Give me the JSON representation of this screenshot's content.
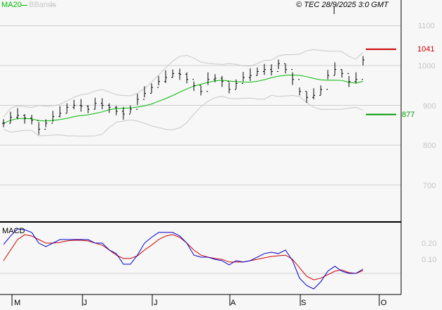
{
  "legend": {
    "ma_label": "MA20",
    "bb_label": "BBands",
    "ma_color": "#00bb00",
    "bb_color": "#c8c8c8"
  },
  "copyright": "© TEC 28/9/2025 3:0 GMT",
  "macd_title": "MACD",
  "levels": {
    "resistance": "1041",
    "support": "877",
    "resistance_value": 1041,
    "support_value": 877,
    "resistance_color": "#cc0000",
    "support_color": "#009900"
  },
  "chart_data": {
    "type": "line",
    "title": "",
    "price_axis": {
      "ticks": [
        1100,
        1000,
        900,
        800,
        700
      ],
      "tick_labels": [
        "1100",
        "1000",
        "900",
        "800",
        "700"
      ],
      "ylim": [
        670,
        1130
      ]
    },
    "macd_axis": {
      "ticks": [
        0.2,
        0.1
      ],
      "tick_labels": [
        "0.20",
        "0.10"
      ],
      "ylim": [
        -0.1,
        0.32
      ]
    },
    "x_labels": [
      "M",
      "J",
      "J",
      "A",
      "S",
      "O"
    ],
    "closes": [
      855,
      870,
      875,
      868,
      862,
      840,
      855,
      872,
      880,
      895,
      900,
      898,
      890,
      905,
      900,
      895,
      885,
      878,
      890,
      915,
      930,
      945,
      960,
      970,
      980,
      978,
      965,
      950,
      935,
      965,
      968,
      960,
      940,
      955,
      970,
      975,
      985,
      990,
      985,
      1005,
      990,
      965,
      935,
      920,
      925,
      940,
      975,
      990,
      980,
      960,
      965,
      1014
    ],
    "macd": [
      0.196,
      0.246,
      0.288,
      0.283,
      0.267,
      0.204,
      0.183,
      0.204,
      0.225,
      0.225,
      0.225,
      0.225,
      0.225,
      0.204,
      0.204,
      0.163,
      0.142,
      0.079,
      0.079,
      0.133,
      0.204,
      0.238,
      0.267,
      0.267,
      0.267,
      0.246,
      0.204,
      0.133,
      0.121,
      0.121,
      0.108,
      0.1,
      0.075,
      0.1,
      0.092,
      0.1,
      0.121,
      0.142,
      0.15,
      0.142,
      0.163,
      0.1,
      -0.004,
      -0.046,
      -0.067,
      -0.025,
      0.038,
      0.067,
      0.038,
      0.025,
      0.025,
      0.05
    ],
    "signal": [
      0.1,
      0.163,
      0.225,
      0.254,
      0.246,
      0.225,
      0.204,
      0.204,
      0.208,
      0.217,
      0.221,
      0.221,
      0.217,
      0.204,
      0.192,
      0.163,
      0.133,
      0.113,
      0.113,
      0.129,
      0.163,
      0.192,
      0.225,
      0.246,
      0.254,
      0.238,
      0.204,
      0.163,
      0.133,
      0.121,
      0.113,
      0.108,
      0.092,
      0.092,
      0.092,
      0.1,
      0.108,
      0.117,
      0.125,
      0.129,
      0.133,
      0.108,
      0.058,
      0.008,
      -0.013,
      -0.004,
      0.017,
      0.038,
      0.046,
      0.029,
      0.025,
      0.042
    ],
    "series_colors": {
      "macd": "#0000cc",
      "signal": "#cc0000",
      "bars": "#000000"
    }
  }
}
